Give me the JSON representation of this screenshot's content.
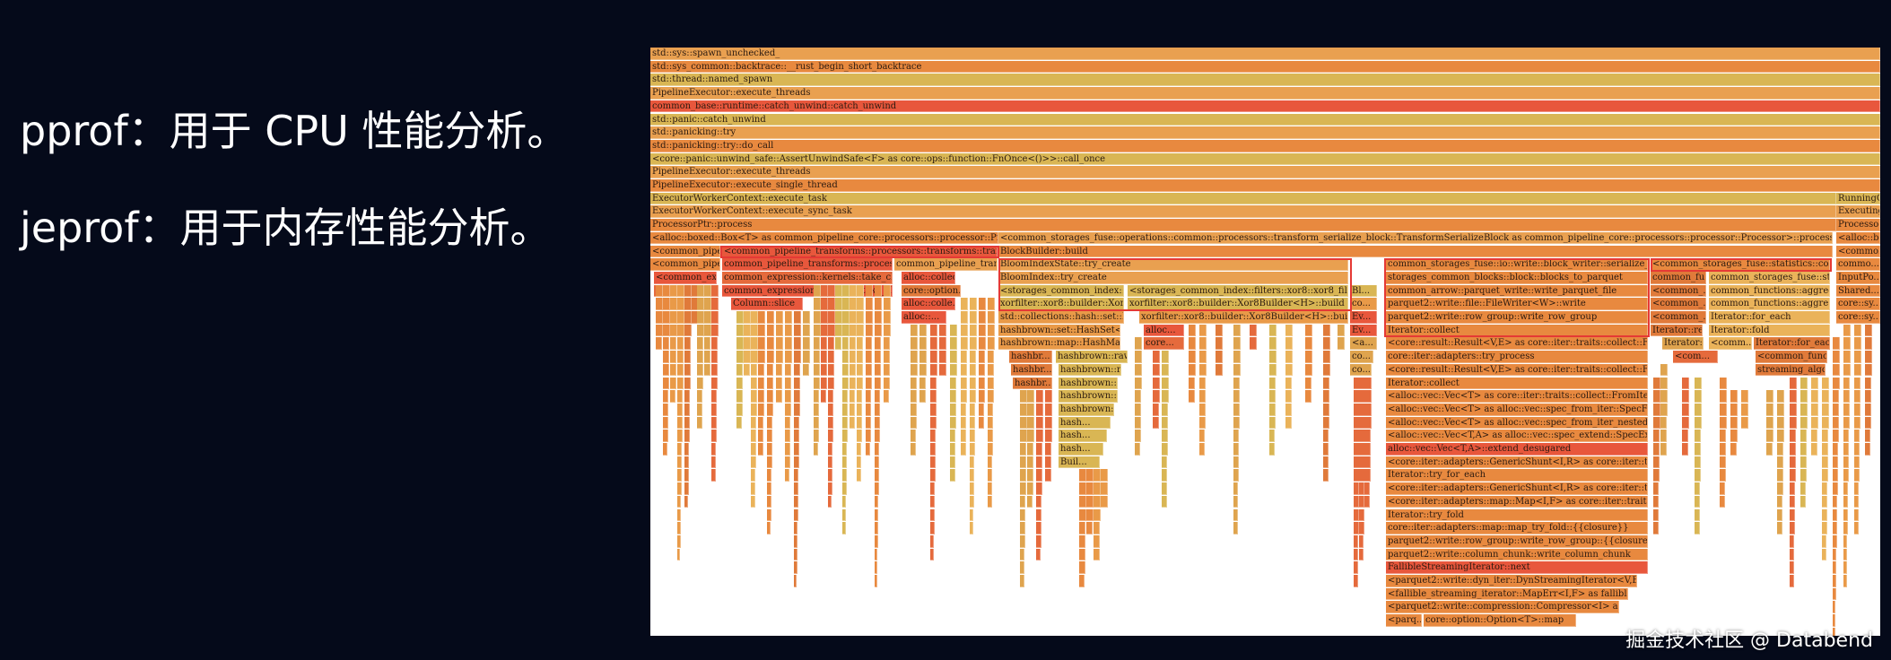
{
  "slide": {
    "line1": "pprof：用于 CPU 性能分析。",
    "line2": "jeprof：用于内存性能分析。",
    "watermark": "掘金技术社区 @ Databend"
  },
  "colors": {
    "background": "#050a1a",
    "flame_orange": "#e8893f",
    "flame_red": "#e8573c",
    "flame_yellow": "#d9b654",
    "highlight": "#e53935"
  },
  "flame": {
    "full_rows": [
      "std::sys::spawn_unchecked_",
      "std::sys_common::backtrace::__rust_begin_short_backtrace",
      "std::thread::named_spawn",
      "PipelineExecutor::execute_threads",
      "common_base::runtime::catch_unwind::catch_unwind",
      "std::panic::catch_unwind",
      "std::panicking::try",
      "std::panicking::try::do_call",
      "<core::panic::unwind_safe::AssertUnwindSafe<F> as core::ops::function::FnOnce<()>>::call_once",
      "PipelineExecutor::execute_threads",
      "PipelineExecutor::execute_single_thread",
      "ExecutorWorkerContext::execute_task",
      "ExecutorWorkerContext::execute_sync_task",
      "ProcessorPtr::process"
    ],
    "right_column": [
      "RunningGr...",
      "Executing...",
      "Processo...",
      "<alloc::b...",
      "<commo...",
      "commo...",
      "InputPo...",
      "Shared...",
      "core::sy...",
      "core::sy..."
    ],
    "row14": [
      "<alloc::boxed::Box<T> as common_pipeline_core::processors::processor::Processor>::process",
      "<common_storages_fuse::operations::common::processors::transform_serialize_block::TransformSerializeBlock as common_pipeline_core::processors::processor::Processor>::process"
    ],
    "row15": [
      "<common_pipe...",
      "<common_pipeline_transforms::processors::transforms::transform_multi_s...",
      "BlockBuilder::build"
    ],
    "row16": [
      "<common_pipe...",
      "common_pipeline_transforms::processors::t...",
      "common_pipeline_transfo...",
      "BloomIndexState::try_create",
      "common_storages_fuse::io::write::block_writer::serialize_block",
      "<common_storages_fuse::statistics::column_...",
      "<common_exp...",
      "common_expression::kernels::take_chunks:...",
      "alloc::collec..."
    ],
    "row17": [
      "common_exp...",
      "common_expression::kernels::take_chunks:...",
      "core::option...",
      "BloomIndex::try_create",
      "storages_common_blocks::block::blocks_to_parquet",
      "common_fu...",
      "common_storages_fuse::sta..."
    ],
    "row18": [
      "Column::slice",
      "alloc::colle...",
      "<storages_common_index::filte...",
      "<storages_common_index::filters::xor8::xor8_filter::Xor8B...",
      "Bl...",
      "common_arrow::parquet_write::write_parquet_file",
      "<common_...",
      "common_functions::aggreg..."
    ],
    "row19": [
      "alloc::...",
      "xorfilter::xor8::builder::Xor8Bu...",
      "xorfilter::xor8::builder::Xor8Builder<H>::build",
      "co...",
      "parquet2::write::file::FileWriter<W>::write",
      "<common_...",
      "common_functions::aggre..."
    ],
    "row20": [
      "std::collections::hash::set::Hash...",
      "xorfilter::xor8::builder::Xor8Builder<H>::build_from_d...",
      "Ev...",
      "parquet2::write::row_group::write_row_group",
      "<common_...",
      "Iterator::for_each"
    ],
    "row21": [
      "hashbrown::set::HashSet<T,S,A...",
      "alloc...",
      "Ev...",
      "Iterator::collect",
      "Iterator::red...",
      "Iterator::fold"
    ],
    "row22": [
      "hashbrown::map::HashMap<K...",
      "core...",
      "<a...",
      "<core::result::Result<V,E> as core::iter::traits::collect::FromIterator<...",
      "Iterator::...",
      "<comm...",
      "Iterator::for_each"
    ],
    "row23": [
      "hashbr...",
      "hashbrown::raw:...",
      "co...",
      "core::iter::adapters::try_process",
      "<com...",
      "<common_func..."
    ],
    "row24": [
      "hashbr...",
      "hashbrown::r...",
      "co...",
      "<core::result::Result<V,E> as core::iter::traits::collect::FromIterator<...",
      "streaming_algo..."
    ],
    "row25": [
      "hashbr...",
      "hashbrown::r...",
      "Iterator::collect"
    ],
    "row26": [
      "hashbrown::r...",
      "<alloc::vec::Vec<T> as core::iter::traits::collect::FromIterator<T>>::f..."
    ],
    "row27": [
      "hashbrown::r...",
      "<alloc::vec::Vec<T> as alloc::vec::spec_from_iter::SpecFromIter<T,I..."
    ],
    "row28": [
      "hash...",
      "<alloc::vec::Vec<T> as alloc::vec::spec_from_iter_nested::SpecFrom..."
    ],
    "row29": [
      "hash...",
      "<alloc::vec::Vec<T,A> as alloc::vec::spec_extend::SpecExtend<T,I>..."
    ],
    "row30": [
      "hash...",
      "alloc::vec::Vec<T,A>::extend_desugared"
    ],
    "row31": [
      "Buil...",
      "<core::iter::adapters::GenericShunt<I,R> as core::iter::traits::iterator..."
    ],
    "deep_stack": [
      "Iterator::try_for_each",
      "<core::iter::adapters::GenericShunt<I,R> as core::iter::traits::iterator...",
      "<core::iter::adapters::map::Map<I,F> as core::iter::traits::iterator::Ite...",
      "Iterator::try_fold",
      "core::iter::adapters::map::map_try_fold::{{closure}}",
      "parquet2::write::row_group::write_row_group::{{closure}}",
      "parquet2::write::column_chunk::write_column_chunk",
      "FallibleStreamingIterator::next",
      "<parquet2::write::dyn_iter::DynStreamingIterator<V,E> as fallible...",
      "<fallible_streaming_iterator::MapErr<I,F> as fallible_streaming_it...",
      "<parquet2::write::compression::Compressor<I> as fallible_...",
      "<parq..."
    ],
    "deep_tail": "core::option::Option<T>::map"
  }
}
